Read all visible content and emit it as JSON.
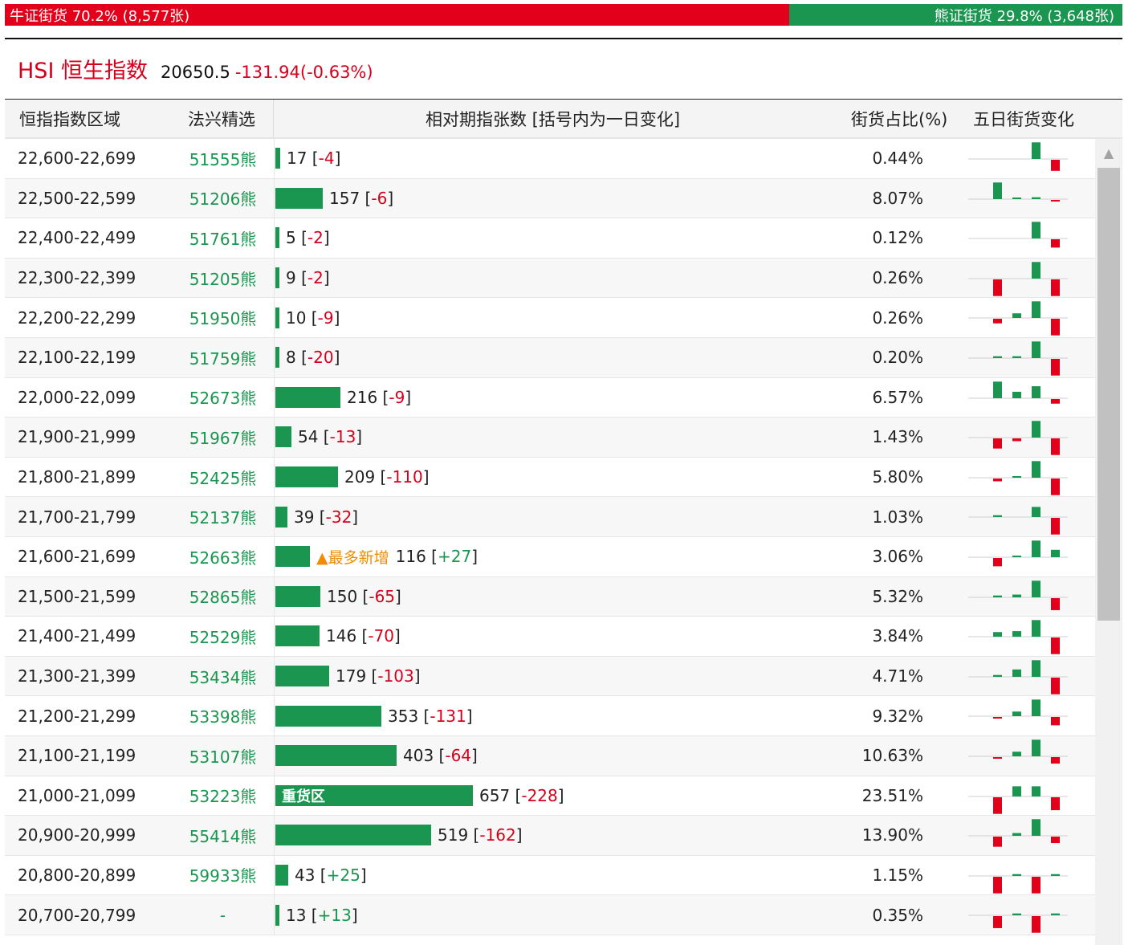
{
  "sentiment": {
    "bull_label": "牛证街货 70.2% (8,577张)",
    "bear_label": "熊证街货 29.8% (3,648张)",
    "bull_percent": 70.2,
    "bear_percent": 29.8
  },
  "index": {
    "code": "HSI 恒生指数",
    "price": "20650.5",
    "change": "-131.94(-0.63%)"
  },
  "columns": {
    "range": "恒指指数区域",
    "pick": "法兴精选",
    "relative": "相对期指张数 [括号内为一日变化]",
    "share": "街货占比(%)",
    "five_day": "五日街货变化"
  },
  "colors": {
    "bull_red": "#e2001a",
    "bear_green": "#1a9650",
    "badge_orange": "#ef8c00"
  },
  "rows": [
    {
      "range": "22,600-22,699",
      "pick": "51555熊",
      "count": 17,
      "count_text": "17",
      "delta": "-4",
      "share": "0.44%",
      "five_day": [
        0,
        0,
        0,
        0.9,
        -0.6
      ]
    },
    {
      "range": "22,500-22,599",
      "pick": "51206熊",
      "count": 157,
      "count_text": "157",
      "delta": "-6",
      "share": "8.07%",
      "five_day": [
        0,
        0.9,
        0.05,
        0.1,
        -0.05
      ]
    },
    {
      "range": "22,400-22,499",
      "pick": "51761熊",
      "count": 5,
      "count_text": "5",
      "delta": "-2",
      "share": "0.12%",
      "five_day": [
        0,
        0,
        0,
        0.9,
        -0.45
      ]
    },
    {
      "range": "22,300-22,399",
      "pick": "51205熊",
      "count": 9,
      "count_text": "9",
      "delta": "-2",
      "share": "0.26%",
      "five_day": [
        0,
        -0.9,
        0,
        0.9,
        -0.9
      ]
    },
    {
      "range": "22,200-22,299",
      "pick": "51950熊",
      "count": 10,
      "count_text": "10",
      "delta": "-9",
      "share": "0.26%",
      "five_day": [
        0,
        -0.25,
        0.25,
        0.9,
        -0.9
      ]
    },
    {
      "range": "22,100-22,199",
      "pick": "51759熊",
      "count": 8,
      "count_text": "8",
      "delta": "-20",
      "share": "0.20%",
      "five_day": [
        0,
        0.1,
        0.1,
        0.9,
        -0.9
      ]
    },
    {
      "range": "22,000-22,099",
      "pick": "52673熊",
      "count": 216,
      "count_text": "216",
      "delta": "-9",
      "share": "6.57%",
      "five_day": [
        0,
        0.9,
        0.35,
        0.65,
        -0.25
      ]
    },
    {
      "range": "21,900-21,999",
      "pick": "51967熊",
      "count": 54,
      "count_text": "54",
      "delta": "-13",
      "share": "1.43%",
      "five_day": [
        0,
        -0.55,
        -0.15,
        0.9,
        -0.9
      ]
    },
    {
      "range": "21,800-21,899",
      "pick": "52425熊",
      "count": 209,
      "count_text": "209",
      "delta": "-110",
      "share": "5.80%",
      "five_day": [
        0,
        -0.15,
        0.05,
        0.9,
        -0.9
      ]
    },
    {
      "range": "21,700-21,799",
      "pick": "52137熊",
      "count": 39,
      "count_text": "39",
      "delta": "-32",
      "share": "1.03%",
      "five_day": [
        0,
        0.1,
        0,
        0.55,
        -0.9
      ]
    },
    {
      "range": "21,600-21,699",
      "pick": "52663熊",
      "count": 116,
      "count_text": "116",
      "delta": "+27",
      "share": "3.06%",
      "badge": "▲最多新增",
      "five_day": [
        0,
        -0.45,
        0.05,
        0.9,
        0.4
      ]
    },
    {
      "range": "21,500-21,599",
      "pick": "52865熊",
      "count": 150,
      "count_text": "150",
      "delta": "-65",
      "share": "5.32%",
      "five_day": [
        0,
        0.1,
        0.15,
        0.9,
        -0.65
      ]
    },
    {
      "range": "21,400-21,499",
      "pick": "52529熊",
      "count": 146,
      "count_text": "146",
      "delta": "-70",
      "share": "3.84%",
      "five_day": [
        0,
        0.25,
        0.3,
        0.9,
        -0.9
      ]
    },
    {
      "range": "21,300-21,399",
      "pick": "53434熊",
      "count": 179,
      "count_text": "179",
      "delta": "-103",
      "share": "4.71%",
      "five_day": [
        0,
        0.1,
        0.4,
        0.9,
        -0.9
      ]
    },
    {
      "range": "21,200-21,299",
      "pick": "53398熊",
      "count": 353,
      "count_text": "353",
      "delta": "-131",
      "share": "9.32%",
      "five_day": [
        0,
        -0.05,
        0.25,
        0.9,
        -0.45
      ]
    },
    {
      "range": "21,100-21,199",
      "pick": "53107熊",
      "count": 403,
      "count_text": "403",
      "delta": "-64",
      "share": "10.63%",
      "five_day": [
        0,
        -0.05,
        0.25,
        0.9,
        -0.35
      ]
    },
    {
      "range": "21,000-21,099",
      "pick": "53223熊",
      "count": 657,
      "count_text": "657",
      "delta": "-228",
      "share": "23.51%",
      "tag": "重货区",
      "five_day": [
        0,
        -0.9,
        0.55,
        0.55,
        -0.7
      ]
    },
    {
      "range": "20,900-20,999",
      "pick": "55414熊",
      "count": 519,
      "count_text": "519",
      "delta": "-162",
      "share": "13.90%",
      "five_day": [
        0,
        -0.55,
        0.15,
        0.9,
        -0.35
      ]
    },
    {
      "range": "20,800-20,899",
      "pick": "59933熊",
      "count": 43,
      "count_text": "43",
      "delta": "+25",
      "share": "1.15%",
      "five_day": [
        0,
        -0.9,
        0.1,
        -0.9,
        0.1
      ]
    },
    {
      "range": "20,700-20,799",
      "pick": "-",
      "count": 13,
      "count_text": "13",
      "delta": "+13",
      "share": "0.35%",
      "five_day": [
        0,
        -0.65,
        0.1,
        -0.9,
        0.1
      ]
    }
  ]
}
